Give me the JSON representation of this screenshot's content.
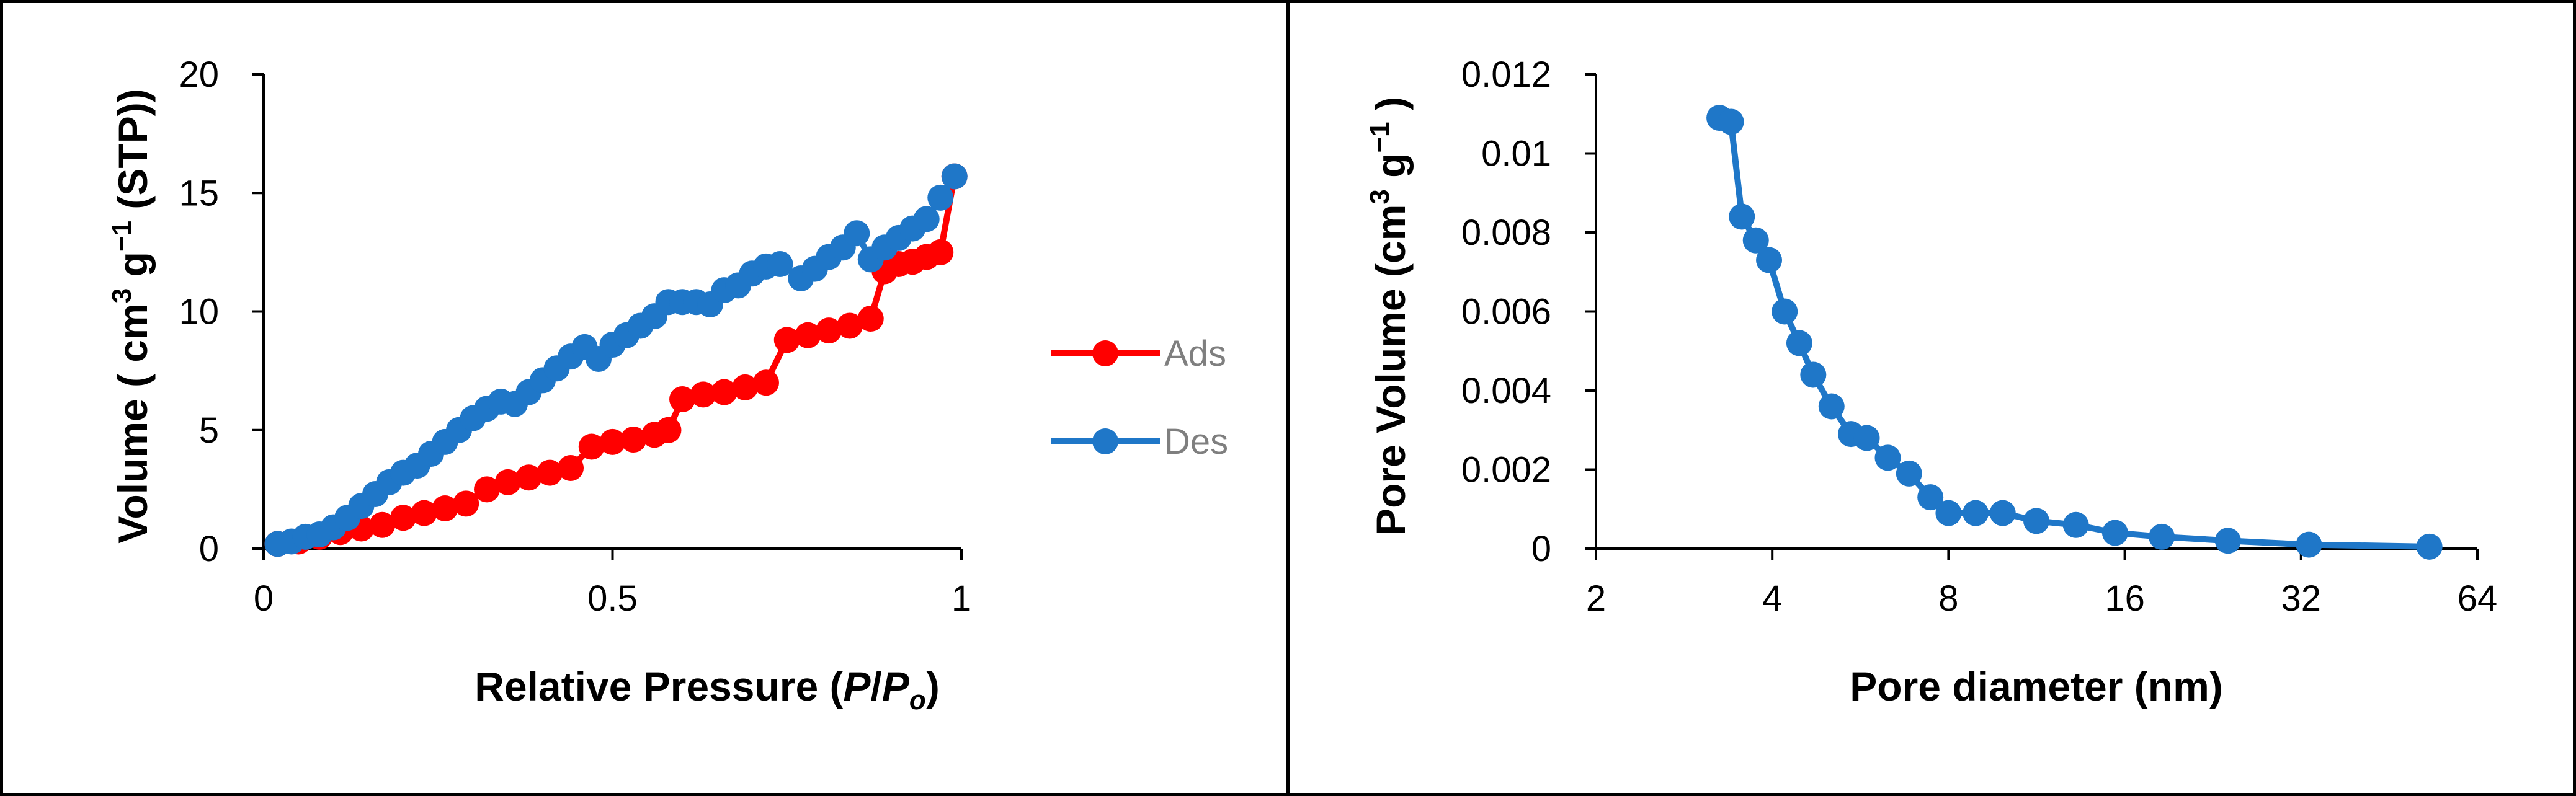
{
  "chart_data": [
    {
      "type": "line",
      "xlabel_main": "Relative Pressure (",
      "xlabel_italic_p1": "P",
      "xlabel_slash": "/",
      "xlabel_italic_p2": "P",
      "xlabel_sub": "o",
      "xlabel_close": ")",
      "ylabel_main": "Volume ( cm",
      "ylabel_sup1": "3",
      "ylabel_mid": " g",
      "ylabel_sup2": "−1",
      "ylabel_end": " (STP))",
      "xlim": [
        0,
        1
      ],
      "ylim": [
        0,
        20
      ],
      "xticks": [
        "0",
        "0.5",
        "1"
      ],
      "yticks": [
        "0",
        "5",
        "10",
        "15",
        "20"
      ],
      "grid": false,
      "legend_position": "right",
      "series": [
        {
          "name": "Ads",
          "color": "#ff0000",
          "x": [
            0.02,
            0.05,
            0.08,
            0.11,
            0.14,
            0.17,
            0.2,
            0.23,
            0.26,
            0.29,
            0.32,
            0.35,
            0.38,
            0.41,
            0.44,
            0.47,
            0.5,
            0.53,
            0.56,
            0.58,
            0.6,
            0.63,
            0.66,
            0.69,
            0.72,
            0.75,
            0.78,
            0.81,
            0.84,
            0.87,
            0.89,
            0.91,
            0.93,
            0.95,
            0.97,
            0.99
          ],
          "y": [
            0.2,
            0.3,
            0.5,
            0.7,
            0.85,
            1.0,
            1.3,
            1.5,
            1.7,
            1.9,
            2.5,
            2.8,
            3.0,
            3.2,
            3.4,
            4.3,
            4.5,
            4.6,
            4.8,
            5.0,
            6.3,
            6.5,
            6.6,
            6.8,
            7.0,
            8.8,
            9.0,
            9.2,
            9.4,
            9.7,
            11.7,
            12.0,
            12.1,
            12.3,
            12.5,
            15.7
          ]
        },
        {
          "name": "Des",
          "color": "#1f77c8",
          "x": [
            0.02,
            0.04,
            0.06,
            0.08,
            0.1,
            0.12,
            0.14,
            0.16,
            0.18,
            0.2,
            0.22,
            0.24,
            0.26,
            0.28,
            0.3,
            0.32,
            0.34,
            0.36,
            0.38,
            0.4,
            0.42,
            0.44,
            0.46,
            0.48,
            0.5,
            0.52,
            0.54,
            0.56,
            0.58,
            0.6,
            0.62,
            0.64,
            0.66,
            0.68,
            0.7,
            0.72,
            0.74,
            0.77,
            0.79,
            0.81,
            0.83,
            0.85,
            0.87,
            0.89,
            0.91,
            0.93,
            0.95,
            0.97,
            0.99
          ],
          "y": [
            0.2,
            0.3,
            0.5,
            0.6,
            0.9,
            1.3,
            1.8,
            2.3,
            2.8,
            3.2,
            3.5,
            4.0,
            4.5,
            5.0,
            5.5,
            5.9,
            6.2,
            6.1,
            6.6,
            7.1,
            7.6,
            8.1,
            8.5,
            8.0,
            8.6,
            9.0,
            9.4,
            9.8,
            10.4,
            10.4,
            10.4,
            10.3,
            10.9,
            11.1,
            11.6,
            11.9,
            12.0,
            11.4,
            11.8,
            12.3,
            12.7,
            13.3,
            12.2,
            12.7,
            13.1,
            13.5,
            13.9,
            14.8,
            15.7
          ]
        }
      ]
    },
    {
      "type": "line",
      "xlabel": "Pore diameter (nm)",
      "ylabel_main": "Pore Volume (cm",
      "ylabel_sup1": "3",
      "ylabel_mid": " g",
      "ylabel_sup2": "−1",
      "ylabel_end": " )",
      "xscale": "log2",
      "xlim": [
        2,
        64
      ],
      "ylim": [
        0,
        0.012
      ],
      "xticks": [
        "2",
        "4",
        "8",
        "16",
        "32",
        "64"
      ],
      "yticks": [
        "0",
        "0.002",
        "0.004",
        "0.006",
        "0.008",
        "0.01",
        "0.012"
      ],
      "grid": false,
      "series": [
        {
          "color": "#1f77c8",
          "x": [
            3.25,
            3.4,
            3.55,
            3.75,
            3.95,
            4.2,
            4.45,
            4.7,
            5.05,
            5.45,
            5.8,
            6.3,
            6.85,
            7.45,
            8.0,
            8.9,
            9.9,
            11.3,
            13.2,
            15.4,
            18.5,
            24.0,
            33.0,
            53.0
          ],
          "y": [
            0.0109,
            0.0108,
            0.0084,
            0.0078,
            0.0073,
            0.006,
            0.0052,
            0.0044,
            0.0036,
            0.0029,
            0.0028,
            0.0023,
            0.0019,
            0.0013,
            0.0009,
            0.0009,
            0.0009,
            0.0007,
            0.0006,
            0.0004,
            0.0003,
            0.0002,
            0.0001,
            5e-05
          ]
        }
      ]
    }
  ]
}
